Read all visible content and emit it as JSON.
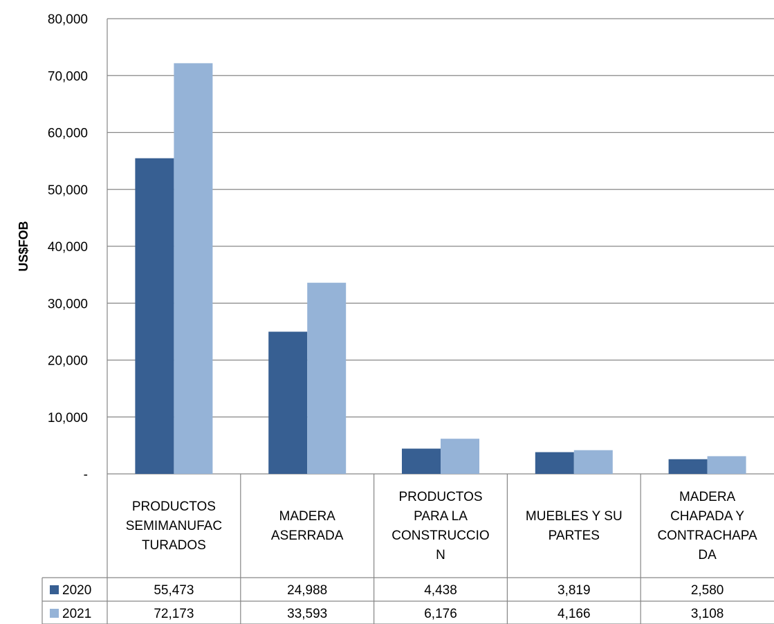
{
  "chart_data": {
    "type": "bar",
    "ylabel": "US$FOB",
    "ylim": [
      0,
      80000
    ],
    "y_ticks": [
      "-",
      "10,000",
      "20,000",
      "30,000",
      "40,000",
      "50,000",
      "60,000",
      "70,000",
      "80,000"
    ],
    "grid": true,
    "categories": [
      [
        "PRODUCTOS",
        "SEMIMANUFAC",
        "TURADOS"
      ],
      [
        "MADERA",
        "ASERRADA"
      ],
      [
        "PRODUCTOS",
        "PARA LA",
        "CONSTRUCCIO",
        "N"
      ],
      [
        "MUEBLES Y SU",
        "PARTES"
      ],
      [
        "MADERA",
        "CHAPADA Y",
        "CONTRACHAPA",
        "DA"
      ]
    ],
    "series": [
      {
        "name": "2020",
        "color": "#375f92",
        "values": [
          55473,
          24988,
          4438,
          3819,
          2580
        ],
        "labels": [
          "55,473",
          "24,988",
          "4,438",
          "3,819",
          "2,580"
        ]
      },
      {
        "name": "2021",
        "color": "#95b3d7",
        "values": [
          72173,
          33593,
          6176,
          4166,
          3108
        ],
        "labels": [
          "72,173",
          "33,593",
          "6,176",
          "4,166",
          "3,108"
        ]
      }
    ],
    "legend": "data-table-rows"
  }
}
